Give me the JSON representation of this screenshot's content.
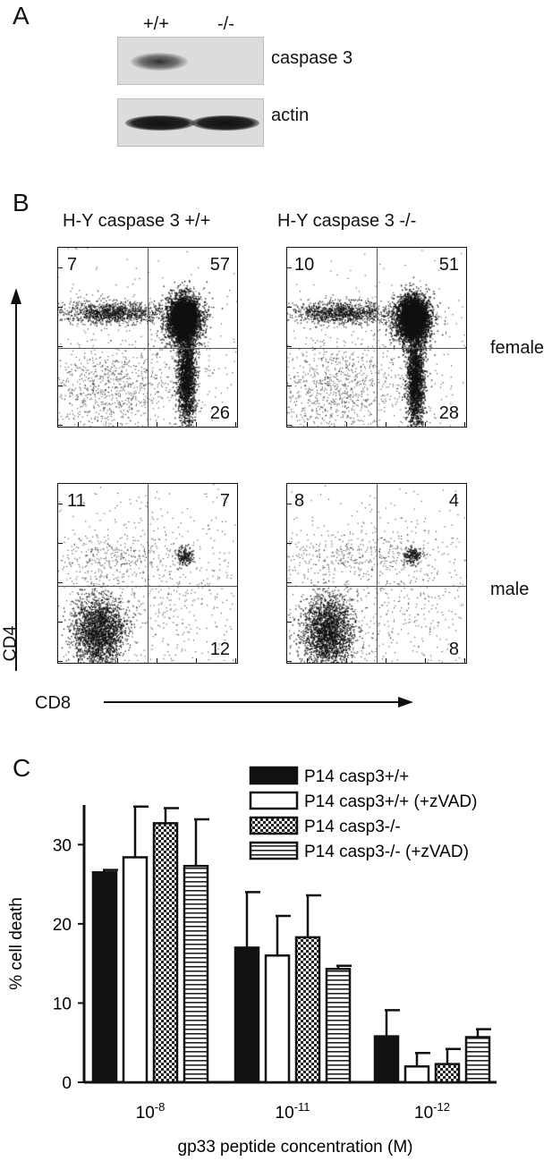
{
  "panelA": {
    "letter": "A",
    "lane_labels": [
      "+/+",
      "-/-"
    ],
    "blot_labels": [
      "caspase 3",
      "actin"
    ]
  },
  "panelB": {
    "letter": "B",
    "col_titles": [
      "H-Y caspase 3 +/+",
      "H-Y caspase 3 -/-"
    ],
    "row_labels": [
      "female",
      "male"
    ],
    "y_axis_label": "CD4",
    "x_axis_label": "CD8",
    "quadrants": [
      {
        "tl": "7",
        "tr": "57",
        "br": "26"
      },
      {
        "tl": "10",
        "tr": "51",
        "br": "28"
      },
      {
        "tl": "11",
        "tr": "7",
        "br": "12"
      },
      {
        "tl": "8",
        "tr": "4",
        "br": "8"
      }
    ]
  },
  "panelC": {
    "letter": "C"
  },
  "chart_data": {
    "type": "bar",
    "categories": [
      "10-8",
      "10-11",
      "10-12"
    ],
    "category_labels": [
      {
        "base": "10",
        "exp": "-8"
      },
      {
        "base": "10",
        "exp": "-11"
      },
      {
        "base": "10",
        "exp": "-12"
      }
    ],
    "series": [
      {
        "name": "P14 casp3+/+",
        "fill": "solid",
        "values": [
          26.5,
          17,
          5.8
        ],
        "errors": [
          0.3,
          7,
          3.3
        ]
      },
      {
        "name": "P14 casp3+/+ (+zVAD)",
        "fill": "open",
        "values": [
          28.4,
          16,
          2
        ],
        "errors": [
          6.4,
          5,
          1.7
        ]
      },
      {
        "name": "P14 casp3-/-",
        "fill": "checker",
        "values": [
          32.7,
          18.3,
          2.3
        ],
        "errors": [
          1.9,
          5.3,
          1.9
        ]
      },
      {
        "name": "P14 casp3-/- (+zVAD)",
        "fill": "hstripe",
        "values": [
          27.3,
          14.3,
          5.7
        ],
        "errors": [
          5.9,
          0.4,
          1
        ]
      }
    ],
    "ylabel": "% cell death",
    "xlabel": "gp33 peptide concentration (M)",
    "ylim": [
      0,
      35
    ],
    "yticks": [
      "0",
      "10",
      "20",
      "30"
    ],
    "legend_position": "top-right",
    "colors": {
      "ink": "#111111"
    }
  }
}
